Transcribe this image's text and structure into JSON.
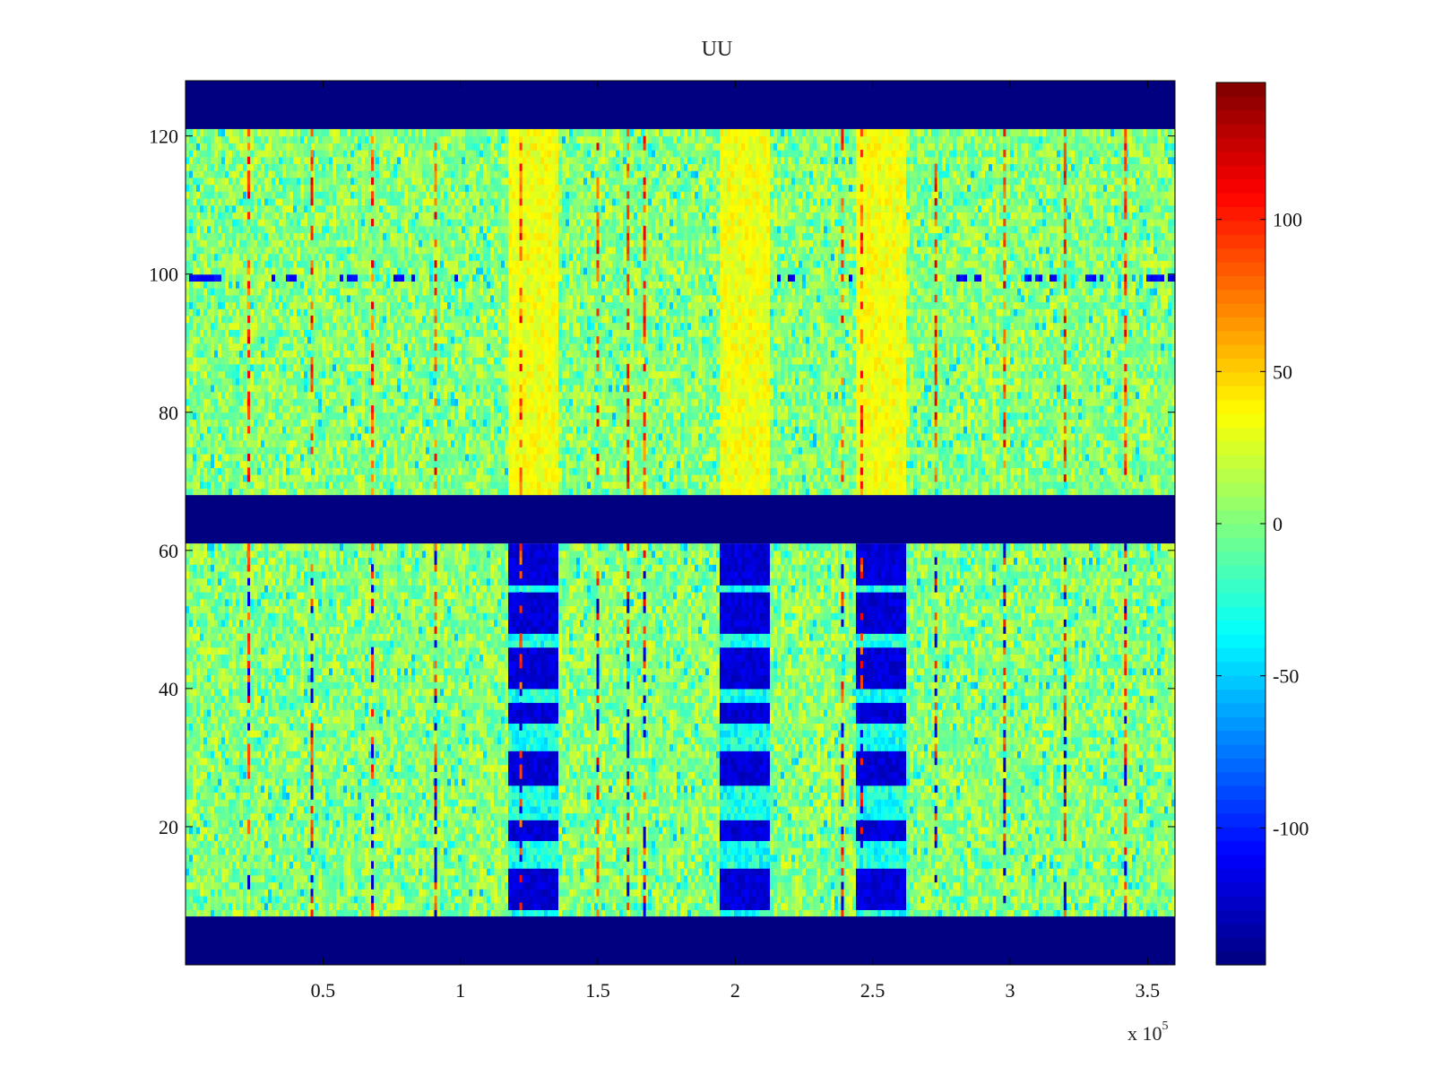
{
  "chart_data": {
    "type": "heatmap",
    "title": "UU",
    "x_multiplier_label": "x 10",
    "x_multiplier_exponent": "5",
    "xlim": [
      0,
      360000
    ],
    "ylim": [
      0,
      128
    ],
    "xticks": [
      50000,
      100000,
      150000,
      200000,
      250000,
      300000,
      350000
    ],
    "xtick_labels": [
      "0.5",
      "1",
      "1.5",
      "2",
      "2.5",
      "3",
      "3.5"
    ],
    "yticks": [
      20,
      40,
      60,
      80,
      100,
      120
    ],
    "ytick_labels": [
      "20",
      "40",
      "60",
      "80",
      "100",
      "120"
    ],
    "colorbar": {
      "colormap": "jet",
      "clim": [
        -145,
        145
      ],
      "ticks": [
        100,
        50,
        0,
        -50,
        -100
      ],
      "tick_labels": [
        "100",
        "50",
        "0",
        "-50",
        "-100"
      ]
    },
    "masked_rows": [
      [
        0,
        7
      ],
      [
        61,
        68
      ],
      [
        121,
        128
      ]
    ],
    "masked_value": -145,
    "background_value_range": [
      -20,
      30
    ],
    "bright_columns_x": [
      127000,
      203000,
      253000
    ],
    "blue_block_rows_lower": [
      [
        8,
        14
      ],
      [
        18,
        21
      ],
      [
        26,
        31
      ],
      [
        35,
        38
      ],
      [
        40,
        46
      ],
      [
        48,
        54
      ],
      [
        55,
        61
      ]
    ],
    "red_line_columns_x": [
      23000,
      46000,
      68000,
      91000,
      122000,
      150000,
      161000,
      167000,
      239000,
      246000,
      273000,
      298000,
      320000,
      342000
    ],
    "row_100_dark_segments_x": [
      [
        0,
        14000
      ],
      [
        30000,
        40000
      ],
      [
        56000,
        62000
      ],
      [
        76000,
        85000
      ],
      [
        98000,
        107000
      ],
      [
        215000,
        222000
      ],
      [
        240000,
        243000
      ],
      [
        280000,
        290000
      ],
      [
        305000,
        318000
      ],
      [
        326000,
        334000
      ],
      [
        350000,
        360000
      ]
    ],
    "grid": false,
    "legend": "none"
  },
  "colors": {
    "masked": "#00008f",
    "axes": "#000000",
    "background": "#ffffff"
  }
}
